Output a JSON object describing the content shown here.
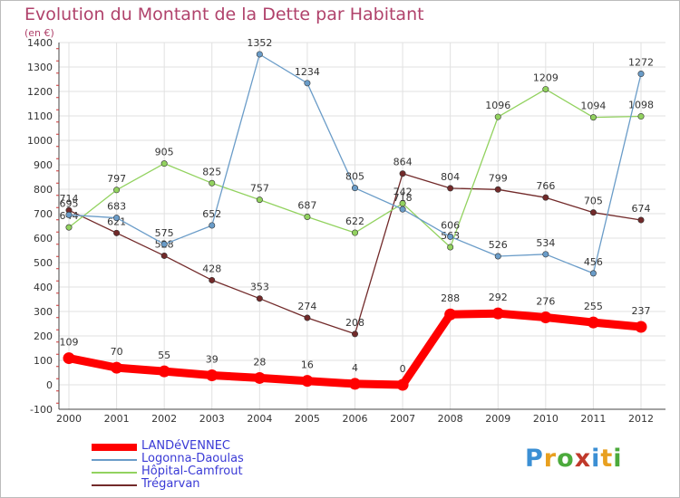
{
  "title": "Evolution du Montant de la Dette par Habitant",
  "subtitle": "(en €)",
  "logo": {
    "text": "Proxiti",
    "colors": [
      "#3b8fd4",
      "#e8a020",
      "#4caa3c",
      "#c0392b",
      "#3b8fd4",
      "#e8a020",
      "#4caa3c"
    ]
  },
  "chart_data": {
    "type": "line",
    "title": "Evolution du Montant de la Dette par Habitant",
    "ylabel": "(en €)",
    "xlabel": "",
    "x": [
      "2000",
      "2001",
      "2002",
      "2003",
      "2004",
      "2005",
      "2006",
      "2007",
      "2008",
      "2009",
      "2010",
      "2011",
      "2012"
    ],
    "ylim": [
      -100,
      1400
    ],
    "yticks": [
      "-100",
      "0",
      "100",
      "200",
      "300",
      "400",
      "500",
      "600",
      "700",
      "800",
      "900",
      "1000",
      "1100",
      "1200",
      "1300",
      "1400"
    ],
    "grid": "horizontal",
    "legend_position": "bottom-left",
    "series": [
      {
        "name": "Trégarvan",
        "color": "#722a2a",
        "values": [
          714,
          621,
          528,
          428,
          353,
          274,
          208,
          864,
          804,
          799,
          766,
          705,
          674
        ],
        "labels": [
          "714",
          "621",
          "528",
          "428",
          "353",
          "274",
          "208",
          "864",
          "804",
          "799",
          "766",
          "705",
          "674"
        ]
      },
      {
        "name": "Hôpital-Camfrout",
        "color": "#92d25f",
        "values": [
          644,
          797,
          905,
          825,
          757,
          687,
          622,
          742,
          563,
          1096,
          1209,
          1094,
          1098
        ],
        "labels": [
          "644",
          "797",
          "905",
          "825",
          "757",
          "687",
          "622",
          "742",
          "563",
          "1096",
          "1209",
          "1094",
          "1098"
        ]
      },
      {
        "name": "Logonna-Daoulas",
        "color": "#6a9cc8",
        "values": [
          695,
          683,
          575,
          652,
          1352,
          1234,
          805,
          718,
          606,
          526,
          534,
          456,
          1272
        ],
        "labels": [
          "695",
          "683",
          "575",
          "652",
          "1352",
          "1234",
          "805",
          "718",
          "606",
          "526",
          "534",
          "456",
          "1272"
        ]
      },
      {
        "name": "LANDéVENNEC",
        "color": "#ff0000",
        "values": [
          109,
          70,
          55,
          39,
          28,
          16,
          4,
          0,
          288,
          292,
          276,
          255,
          237
        ],
        "labels": [
          "109",
          "70",
          "55",
          "39",
          "28",
          "16",
          "4",
          "0",
          "288",
          "292",
          "276",
          "255",
          "237"
        ]
      }
    ],
    "legend": [
      {
        "name": "LANDéVENNEC",
        "color": "#ff0000",
        "text_color": "#3a3ad6",
        "thick": true
      },
      {
        "name": "Logonna-Daoulas",
        "color": "#6a9cc8",
        "text_color": "#3a3ad6",
        "thick": false
      },
      {
        "name": "Hôpital-Camfrout",
        "color": "#92d25f",
        "text_color": "#3a3ad6",
        "thick": false
      },
      {
        "name": "Trégarvan",
        "color": "#722a2a",
        "text_color": "#3a3ad6",
        "thick": false
      }
    ]
  }
}
